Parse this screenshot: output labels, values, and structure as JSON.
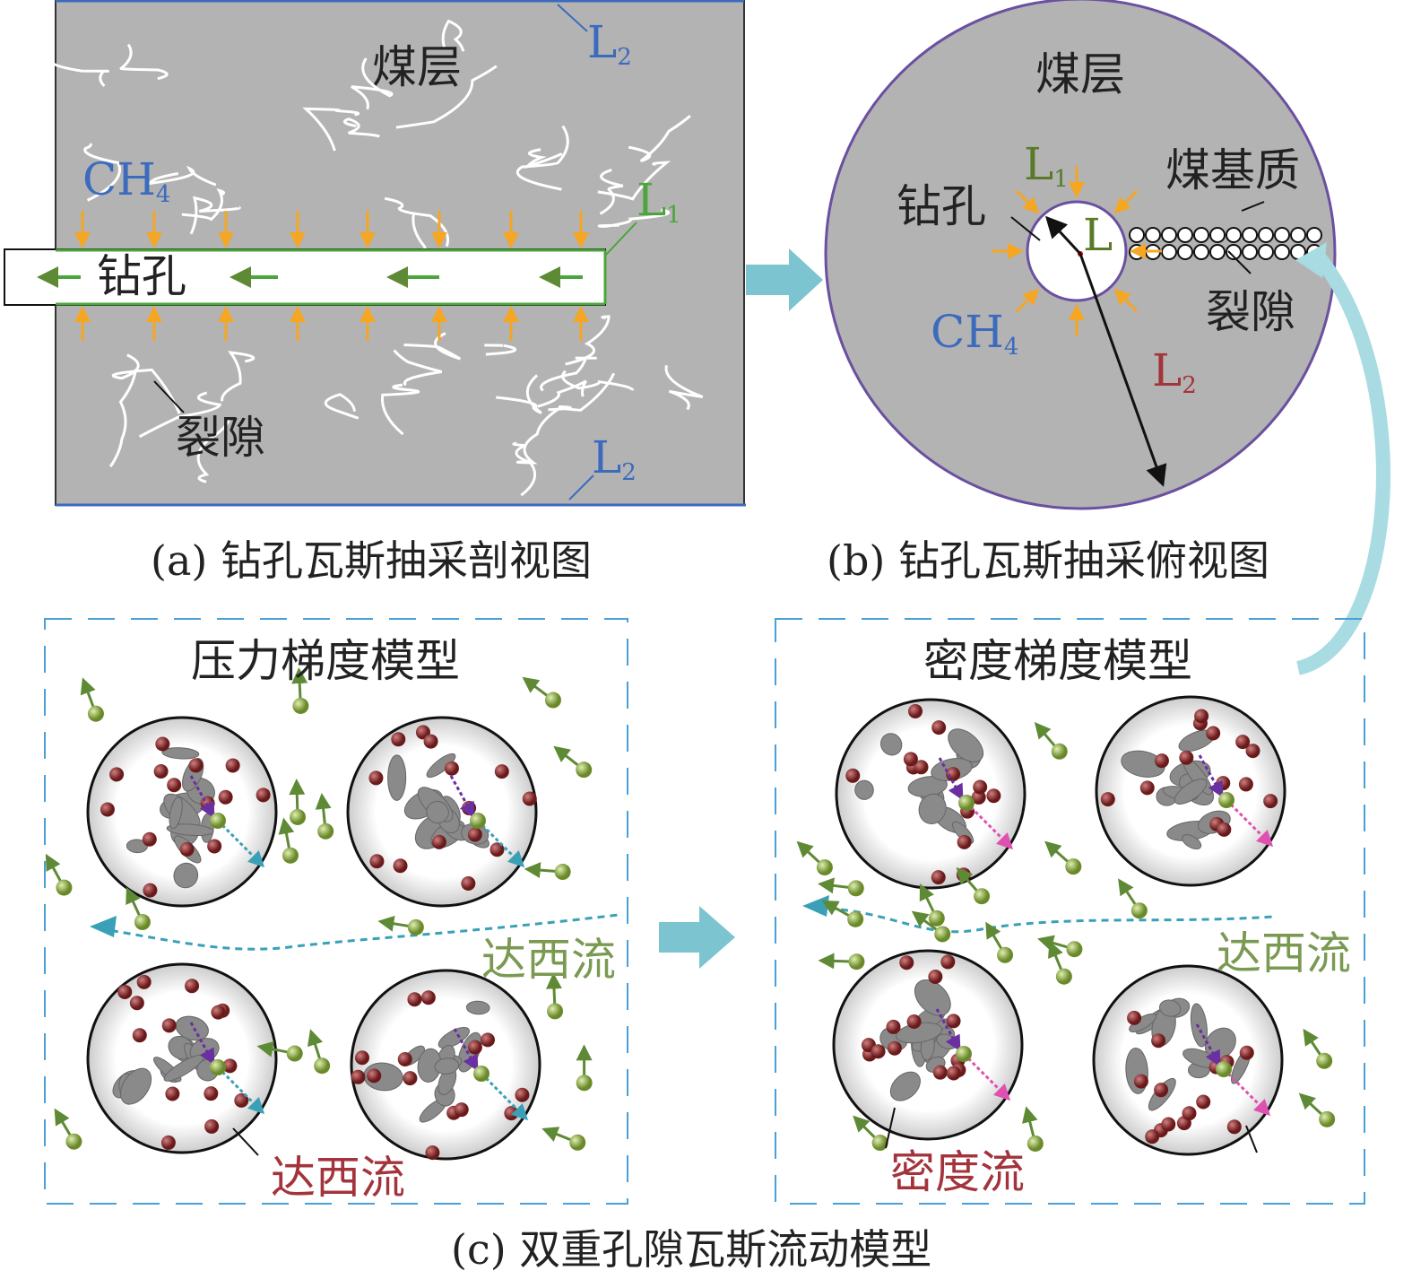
{
  "panel_a": {
    "coal_seam": "煤层",
    "ch4": "CH",
    "ch4_sub": "4",
    "borehole": "钻孔",
    "fracture": "裂隙",
    "l1": "L",
    "l1_sub": "1",
    "l2_top": "L",
    "l2_top_sub": "2",
    "l2_bottom": "L",
    "l2_bottom_sub": "2",
    "caption": "(a) 钻孔瓦斯抽采剖视图"
  },
  "panel_b": {
    "coal_seam": "煤层",
    "borehole": "钻孔",
    "matrix": "煤基质",
    "fracture": "裂隙",
    "ch4": "CH",
    "ch4_sub": "4",
    "l": "L",
    "l1": "L",
    "l1_sub": "1",
    "l2": "L",
    "l2_sub": "2",
    "caption": "(b) 钻孔瓦斯抽采俯视图"
  },
  "panel_c": {
    "left_title": "压力梯度模型",
    "right_title": "密度梯度模型",
    "darcy_left": "达西流",
    "darcy_left_bottom": "达西流",
    "darcy_right": "达西流",
    "density_flow": "密度流",
    "caption": "(c) 双重孔隙瓦斯流动模型"
  },
  "colors": {
    "coal": "#b3b3b3",
    "borehole_border": "#4aa63a",
    "gas_arrow": "#f5a623",
    "boundary_line": "#3c6bbd",
    "circle_border": "#6b4fa0",
    "dashed_box": "#4a9fd6",
    "transition_arrow": "#7cc4cf",
    "gas_particle": "#7a9a3a",
    "adsorbed_particle": "#8b2a2a",
    "diffusion_arrow": "#6a2fa0",
    "density_arrow": "#e050b0"
  }
}
